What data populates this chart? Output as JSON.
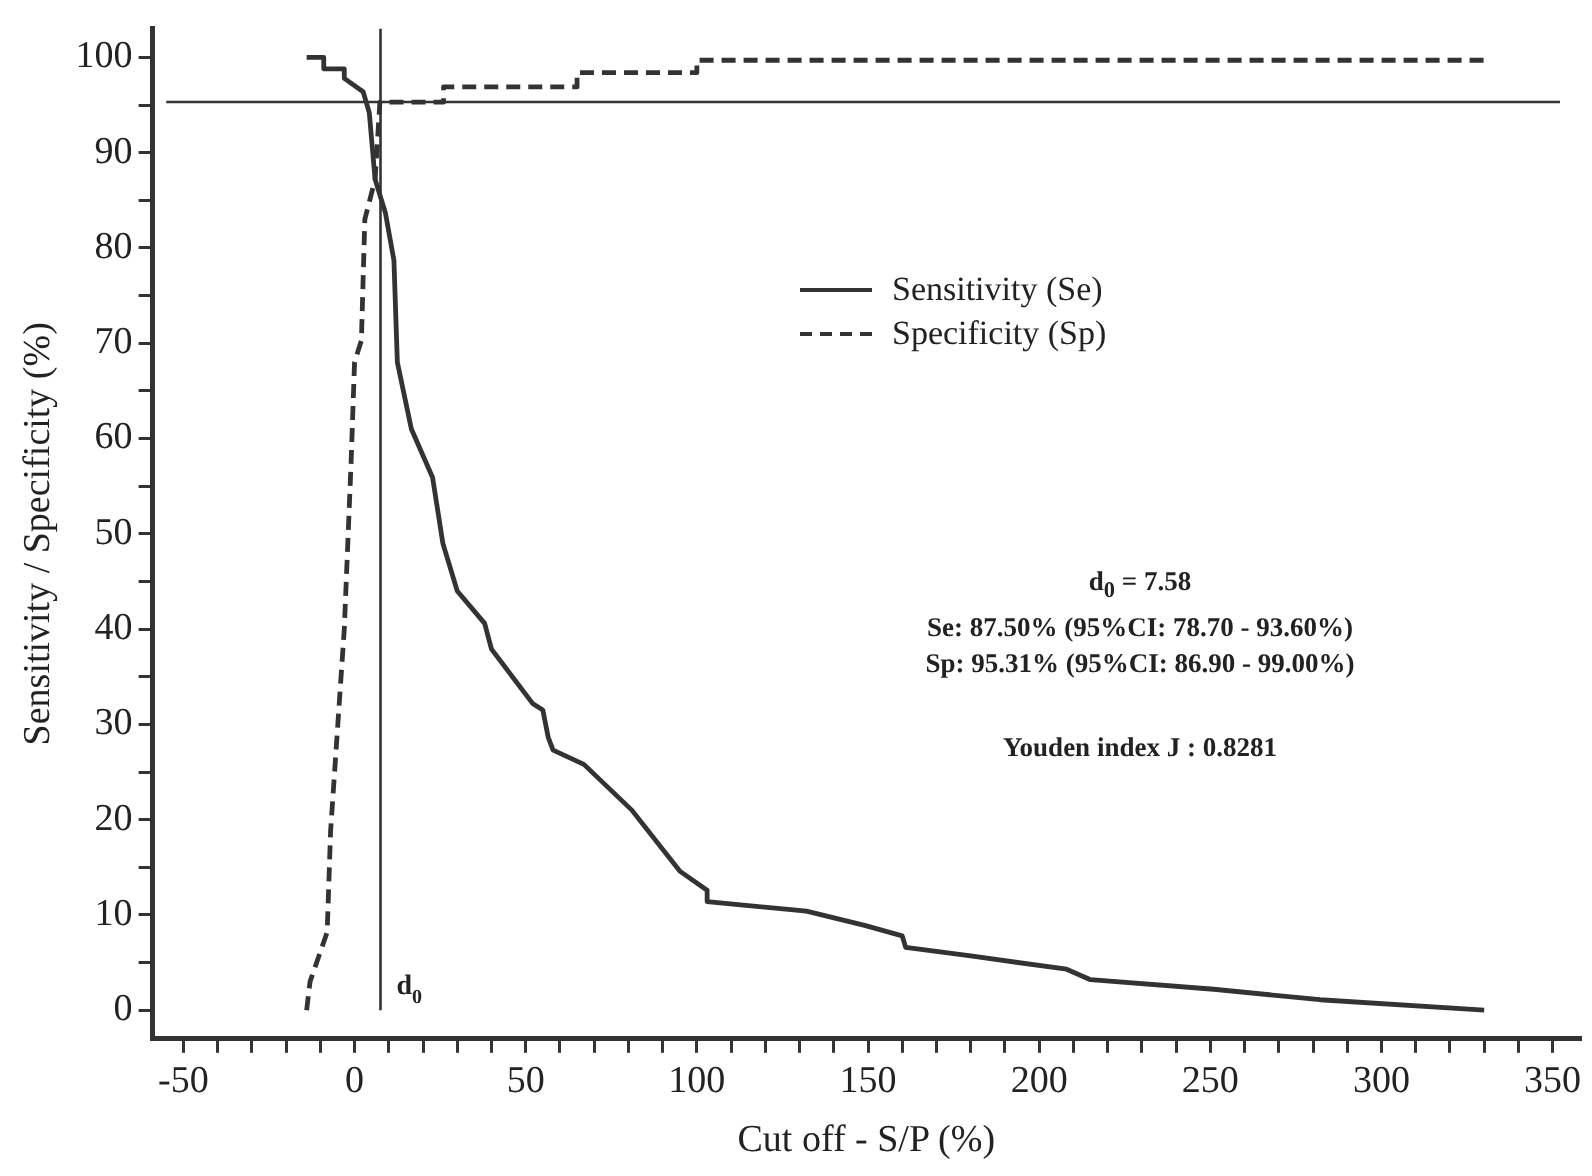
{
  "chart_data": {
    "type": "line",
    "xlabel": "Cut off - S/P (%)",
    "ylabel": "Sensitivity / Specificity (%)",
    "xlim": [
      -59,
      358
    ],
    "ylim": [
      -3,
      103
    ],
    "xticks": [
      -50,
      {
        "value": -40,
        "label": null
      },
      {
        "value": -30,
        "label": null
      },
      {
        "value": -20,
        "label": null
      },
      {
        "value": -10,
        "label": null
      },
      0,
      {
        "value": 10,
        "label": null
      },
      {
        "value": 20,
        "label": null
      },
      {
        "value": 30,
        "label": null
      },
      {
        "value": 40,
        "label": null
      },
      50,
      {
        "value": 60,
        "label": null
      },
      {
        "value": 70,
        "label": null
      },
      {
        "value": 80,
        "label": null
      },
      {
        "value": 90,
        "label": null
      },
      100,
      {
        "value": 110,
        "label": null
      },
      {
        "value": 120,
        "label": null
      },
      {
        "value": 130,
        "label": null
      },
      {
        "value": 140,
        "label": null
      },
      150,
      {
        "value": 160,
        "label": null
      },
      {
        "value": 170,
        "label": null
      },
      {
        "value": 180,
        "label": null
      },
      {
        "value": 190,
        "label": null
      },
      200,
      {
        "value": 210,
        "label": null
      },
      {
        "value": 220,
        "label": null
      },
      {
        "value": 230,
        "label": null
      },
      {
        "value": 240,
        "label": null
      },
      250,
      {
        "value": 260,
        "label": null
      },
      {
        "value": 270,
        "label": null
      },
      {
        "value": 280,
        "label": null
      },
      {
        "value": 290,
        "label": null
      },
      300,
      {
        "value": 310,
        "label": null
      },
      {
        "value": 320,
        "label": null
      },
      {
        "value": 330,
        "label": null
      },
      {
        "value": 340,
        "label": null
      },
      350
    ],
    "yticks": [
      0,
      {
        "value": 5,
        "label": null
      },
      10,
      {
        "value": 15,
        "label": null
      },
      20,
      {
        "value": 25,
        "label": null
      },
      30,
      {
        "value": 35,
        "label": null
      },
      40,
      {
        "value": 45,
        "label": null
      },
      50,
      {
        "value": 55,
        "label": null
      },
      60,
      {
        "value": 65,
        "label": null
      },
      70,
      {
        "value": 75,
        "label": null
      },
      80,
      {
        "value": 85,
        "label": null
      },
      90,
      {
        "value": 95,
        "label": null
      },
      100
    ],
    "grid": false,
    "legend": "top",
    "marker": "none",
    "series": [
      {
        "name": "Sensitivity (Se)",
        "color": "#333333",
        "line_style": "solid",
        "x": [
          -14,
          -9,
          -9,
          -3,
          -3,
          2.5,
          4.3,
          6,
          9,
          11.5,
          12.5,
          16.6,
          22.8,
          25.8,
          30,
          38,
          40,
          52,
          55,
          56.6,
          58,
          67,
          81,
          95,
          103,
          103,
          132,
          149,
          160,
          161,
          180,
          208,
          215,
          251,
          282,
          330
        ],
        "values": [
          100,
          100,
          98.8,
          98.8,
          97.8,
          96.4,
          94.2,
          87.2,
          83.7,
          78.7,
          68,
          61,
          55.9,
          49,
          44,
          40.6,
          37.9,
          32.2,
          31.5,
          28.6,
          27.3,
          25.8,
          21,
          14.6,
          12.6,
          11.4,
          10.4,
          8.9,
          7.8,
          6.6,
          5.7,
          4.3,
          3.2,
          2.2,
          1.1,
          0
        ]
      },
      {
        "name": "Specificity (Sp)",
        "color": "#333333",
        "line_style": "dashed",
        "x": [
          -14,
          -13,
          -8,
          -7,
          -5,
          -3,
          -1,
          0,
          2,
          3,
          6,
          7.4,
          26,
          26,
          65,
          65,
          100,
          100,
          331
        ],
        "values": [
          0,
          3,
          8.2,
          18.8,
          29.4,
          40,
          57.6,
          68,
          70.3,
          83,
          87.2,
          95.3,
          95.3,
          96.9,
          96.9,
          98.4,
          98.4,
          99.7,
          99.7
        ]
      }
    ],
    "ref_lines": [
      {
        "axis": "x",
        "value": 7.58,
        "label": "d$_{0}$"
      },
      {
        "axis": "y",
        "value": 95.31
      }
    ],
    "annotations": [
      "d$_{0}$ = 7.58",
      "Se: 87.50% (95%CI: 78.70 - 93.60%)",
      "Sp: 95.31% (95%CI: 86.90 - 99.00%)",
      "Youden index J : 0.8281"
    ]
  }
}
